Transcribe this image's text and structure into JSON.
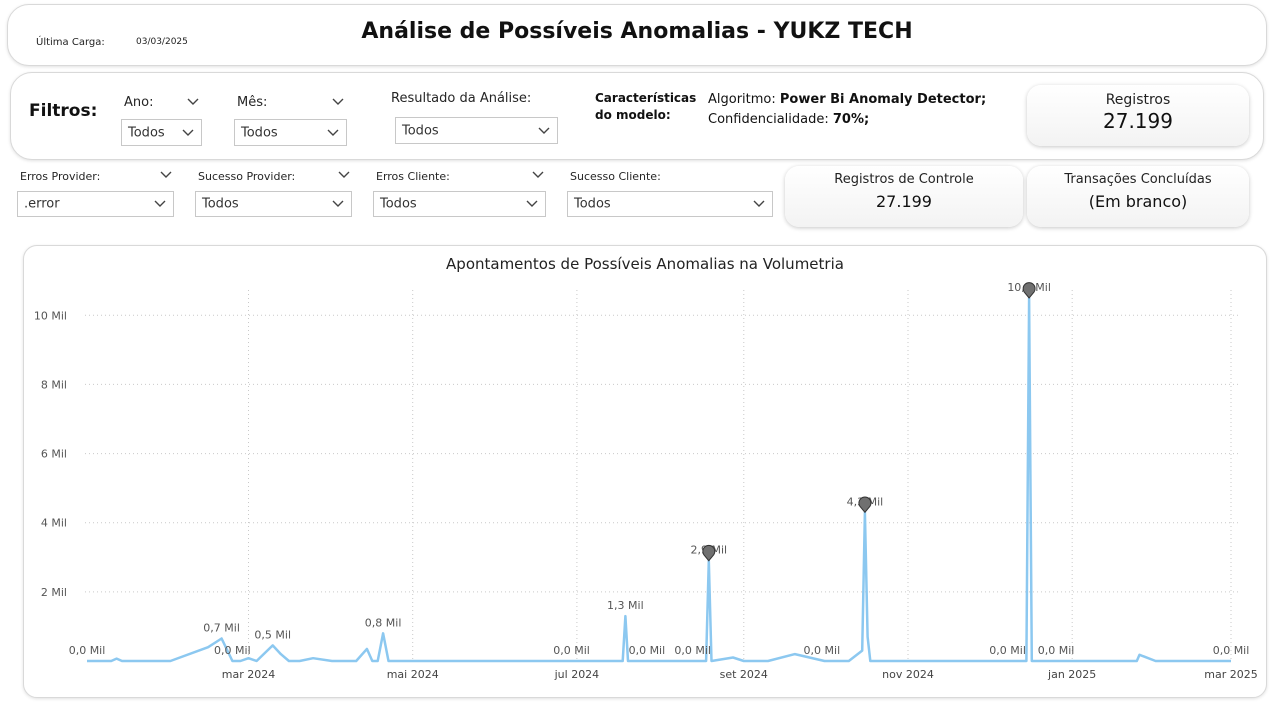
{
  "header": {
    "last_load_label": "Última Carga:",
    "last_load_date": "03/03/2025",
    "title": "Análise de Possíveis Anomalias - YUKZ TECH"
  },
  "filters": {
    "label": "Filtros:",
    "ano": {
      "label": "Ano:",
      "value": "Todos"
    },
    "mes": {
      "label": "Mês:",
      "value": "Todos"
    },
    "resultado": {
      "label": "Resultado da Análise:",
      "value": "Todos"
    },
    "model": {
      "label_line1": "Características",
      "label_line2": "do modelo:",
      "algo_label": "Algoritmo: ",
      "algo_value": "Power Bi Anomaly Detector;",
      "conf_label": "Confidencialidade: ",
      "conf_value": "70%;"
    },
    "erros_provider": {
      "label": "Erros Provider:",
      "value": ".error"
    },
    "sucesso_provider": {
      "label": "Sucesso Provider:",
      "value": "Todos"
    },
    "erros_cliente": {
      "label": "Erros Cliente:",
      "value": "Todos"
    },
    "sucesso_cliente": {
      "label": "Sucesso Cliente:",
      "value": "Todos"
    }
  },
  "kpis": {
    "registros": {
      "label": "Registros",
      "value": "27.199"
    },
    "registros_controle": {
      "label": "Registros de Controle",
      "value": "27.199"
    },
    "transacoes": {
      "label": "Transações Concluídas",
      "value": "(Em branco)"
    }
  },
  "colors": {
    "line": "#8cc8f0",
    "marker": "#707070",
    "grid": "#c9c9c9"
  },
  "chart_data": {
    "type": "line",
    "title": "Apontamentos de Possíveis Anomalias na Volumetria",
    "xlabel": "",
    "ylabel": "",
    "ylim": [
      0,
      10500
    ],
    "xlim": [
      "2024-01-01",
      "2025-03-01"
    ],
    "y_ticks": [
      {
        "value": 2000,
        "label": "2 Mil"
      },
      {
        "value": 4000,
        "label": "4 Mil"
      },
      {
        "value": 6000,
        "label": "6 Mil"
      },
      {
        "value": 8000,
        "label": "8 Mil"
      },
      {
        "value": 10000,
        "label": "10 Mil"
      }
    ],
    "x_ticks": [
      {
        "date": "2024-03-01",
        "label": "mar 2024"
      },
      {
        "date": "2024-05-01",
        "label": "mai 2024"
      },
      {
        "date": "2024-07-01",
        "label": "jul 2024"
      },
      {
        "date": "2024-09-01",
        "label": "set 2024"
      },
      {
        "date": "2024-11-01",
        "label": "nov 2024"
      },
      {
        "date": "2025-01-01",
        "label": "jan 2025"
      },
      {
        "date": "2025-03-01",
        "label": "mar 2025"
      }
    ],
    "grid": true,
    "series": [
      {
        "x": [
          "2024-01-01",
          "2024-01-10",
          "2024-01-12",
          "2024-01-14",
          "2024-01-20",
          "2024-02-01",
          "2024-02-15",
          "2024-02-20",
          "2024-02-24",
          "2024-02-27",
          "2024-03-01",
          "2024-03-04",
          "2024-03-10",
          "2024-03-13",
          "2024-03-16",
          "2024-03-20",
          "2024-03-25",
          "2024-04-01",
          "2024-04-10",
          "2024-04-14",
          "2024-04-16",
          "2024-04-18",
          "2024-04-20",
          "2024-04-22",
          "2024-05-01",
          "2024-06-01",
          "2024-07-01",
          "2024-07-18",
          "2024-07-19",
          "2024-07-20",
          "2024-08-01",
          "2024-08-18",
          "2024-08-19",
          "2024-08-20",
          "2024-08-28",
          "2024-09-01",
          "2024-09-10",
          "2024-09-20",
          "2024-10-01",
          "2024-10-10",
          "2024-10-15",
          "2024-10-16",
          "2024-10-17",
          "2024-10-18",
          "2024-10-20",
          "2024-11-01",
          "2024-12-01",
          "2024-12-15",
          "2024-12-16",
          "2024-12-17",
          "2024-12-18",
          "2025-01-01",
          "2025-01-25",
          "2025-01-26",
          "2025-02-01",
          "2025-02-15",
          "2025-03-01"
        ],
        "y": [
          0,
          0,
          70,
          0,
          0,
          0,
          400,
          650,
          0,
          0,
          80,
          0,
          450,
          200,
          0,
          0,
          80,
          0,
          0,
          350,
          0,
          0,
          800,
          0,
          0,
          0,
          0,
          0,
          1300,
          0,
          0,
          0,
          2900,
          0,
          100,
          0,
          0,
          200,
          0,
          0,
          300,
          4300,
          700,
          0,
          0,
          0,
          0,
          0,
          10500,
          0,
          0,
          0,
          0,
          180,
          0,
          0,
          0
        ]
      }
    ],
    "anomalies": [
      {
        "date": "2024-08-19",
        "value": 2900
      },
      {
        "date": "2024-10-16",
        "value": 4300
      },
      {
        "date": "2024-12-16",
        "value": 10500
      }
    ],
    "annotations": [
      {
        "date": "2024-01-01",
        "value": 0,
        "text": "0,0 Mil"
      },
      {
        "date": "2024-02-20",
        "value": 650,
        "text": "0,7 Mil"
      },
      {
        "date": "2024-02-24",
        "value": 0,
        "text": "0,0 Mil"
      },
      {
        "date": "2024-03-10",
        "value": 450,
        "text": "0,5 Mil"
      },
      {
        "date": "2024-04-20",
        "value": 800,
        "text": "0,8 Mil"
      },
      {
        "date": "2024-06-29",
        "value": 0,
        "text": "0,0 Mil"
      },
      {
        "date": "2024-07-19",
        "value": 1300,
        "text": "1,3 Mil"
      },
      {
        "date": "2024-07-27",
        "value": 0,
        "text": "0,0 Mil"
      },
      {
        "date": "2024-08-13",
        "value": 0,
        "text": "0,0 Mil"
      },
      {
        "date": "2024-08-19",
        "value": 2900,
        "text": "2,9 Mil"
      },
      {
        "date": "2024-09-30",
        "value": 0,
        "text": "0,0 Mil"
      },
      {
        "date": "2024-10-16",
        "value": 4300,
        "text": "4,3 Mil"
      },
      {
        "date": "2024-12-08",
        "value": 0,
        "text": "0,0 Mil"
      },
      {
        "date": "2024-12-16",
        "value": 10500,
        "text": "10,5 Mil"
      },
      {
        "date": "2024-12-26",
        "value": 0,
        "text": "0,0 Mil"
      },
      {
        "date": "2025-03-01",
        "value": 0,
        "text": "0,0 Mil"
      }
    ]
  }
}
